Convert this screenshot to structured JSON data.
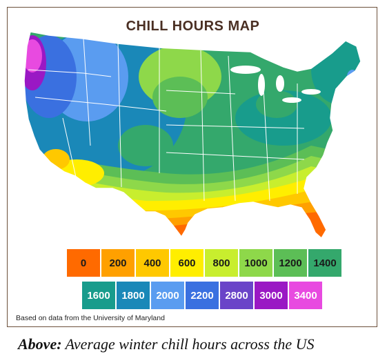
{
  "map": {
    "title": "CHILL HOURS MAP",
    "source_note": "Based on data from the University of Maryland"
  },
  "legend": {
    "row1": [
      {
        "label": "0",
        "color": "#ff6a00",
        "text": "dark"
      },
      {
        "label": "200",
        "color": "#ffa000",
        "text": "dark"
      },
      {
        "label": "400",
        "color": "#ffc800",
        "text": "dark"
      },
      {
        "label": "600",
        "color": "#ffee00",
        "text": "dark"
      },
      {
        "label": "800",
        "color": "#c8ee2e",
        "text": "dark"
      },
      {
        "label": "1000",
        "color": "#8ed84a",
        "text": "dark"
      },
      {
        "label": "1200",
        "color": "#5cbe56",
        "text": "dark"
      },
      {
        "label": "1400",
        "color": "#34a86c",
        "text": "dark"
      }
    ],
    "row2": [
      {
        "label": "1600",
        "color": "#189c8c",
        "text": "light"
      },
      {
        "label": "1800",
        "color": "#1a88b8",
        "text": "light"
      },
      {
        "label": "2000",
        "color": "#5a9cf0",
        "text": "light"
      },
      {
        "label": "2200",
        "color": "#3a70e0",
        "text": "light"
      },
      {
        "label": "2800",
        "color": "#6a44c8",
        "text": "light"
      },
      {
        "label": "3000",
        "color": "#9a18c4",
        "text": "light"
      },
      {
        "label": "3400",
        "color": "#e84ae0",
        "text": "light"
      }
    ]
  },
  "caption": {
    "lead": "Above:",
    "text": " Average winter chill hours across the US"
  }
}
